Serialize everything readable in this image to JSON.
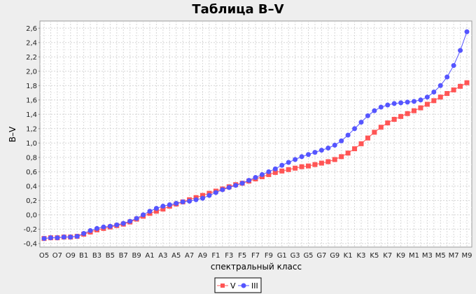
{
  "chart_data": {
    "type": "line",
    "title": "Таблица B–V",
    "xlabel": "спектральный класс",
    "ylabel": "B–V",
    "ylim": [
      -0.45,
      2.7
    ],
    "yticks": [
      -0.4,
      -0.2,
      0.0,
      0.2,
      0.4,
      0.6,
      0.8,
      1.0,
      1.2,
      1.4,
      1.6,
      1.8,
      2.0,
      2.2,
      2.4,
      2.6
    ],
    "ytick_labels": [
      "-0,4",
      "-0,2",
      "0,0",
      "0,2",
      "0,4",
      "0,6",
      "0,8",
      "1,0",
      "1,2",
      "1,4",
      "1,6",
      "1,8",
      "2,0",
      "2,2",
      "2,4",
      "2,6"
    ],
    "categories": [
      "O5",
      "O6",
      "O7",
      "O8",
      "O9",
      "B0",
      "B1",
      "B2",
      "B3",
      "B4",
      "B5",
      "B6",
      "B7",
      "B8",
      "B9",
      "A0",
      "A1",
      "A2",
      "A3",
      "A4",
      "A5",
      "A6",
      "A7",
      "A8",
      "A9",
      "F0",
      "F1",
      "F2",
      "F3",
      "F4",
      "F5",
      "F6",
      "F7",
      "F8",
      "F9",
      "G0",
      "G1",
      "G2",
      "G3",
      "G4",
      "G5",
      "G6",
      "G7",
      "G8",
      "G9",
      "K0",
      "K1",
      "K2",
      "K3",
      "K4",
      "K5",
      "K6",
      "K7",
      "K8",
      "K9",
      "M0",
      "M1",
      "M2",
      "M3",
      "M4",
      "M5",
      "M6",
      "M7",
      "M8",
      "M9"
    ],
    "xtick_labels": [
      "O5",
      "O7",
      "O9",
      "B1",
      "B3",
      "B5",
      "B7",
      "B9",
      "A1",
      "A3",
      "A5",
      "A7",
      "A9",
      "F1",
      "F3",
      "F5",
      "F7",
      "F9",
      "G1",
      "G3",
      "G5",
      "G7",
      "G9",
      "K1",
      "K3",
      "K5",
      "K7",
      "K9",
      "M1",
      "M3",
      "M5",
      "M7",
      "M9"
    ],
    "grid": true,
    "legend_position": "bottom-center",
    "series": [
      {
        "name": "V",
        "color": "#ff5555",
        "marker": "square",
        "values": [
          -0.33,
          -0.32,
          -0.32,
          -0.31,
          -0.31,
          -0.3,
          -0.27,
          -0.24,
          -0.21,
          -0.19,
          -0.17,
          -0.15,
          -0.13,
          -0.1,
          -0.06,
          -0.02,
          0.02,
          0.05,
          0.08,
          0.12,
          0.15,
          0.18,
          0.21,
          0.24,
          0.27,
          0.3,
          0.33,
          0.36,
          0.39,
          0.42,
          0.44,
          0.47,
          0.5,
          0.53,
          0.56,
          0.59,
          0.61,
          0.63,
          0.65,
          0.67,
          0.68,
          0.7,
          0.72,
          0.74,
          0.77,
          0.81,
          0.86,
          0.92,
          0.99,
          1.07,
          1.15,
          1.22,
          1.28,
          1.33,
          1.37,
          1.41,
          1.45,
          1.49,
          1.54,
          1.59,
          1.64,
          1.69,
          1.74,
          1.79,
          1.84
        ]
      },
      {
        "name": "III",
        "color": "#5555ff",
        "marker": "circle",
        "values": [
          -0.33,
          -0.32,
          -0.32,
          -0.31,
          -0.31,
          -0.3,
          -0.26,
          -0.22,
          -0.19,
          -0.17,
          -0.16,
          -0.14,
          -0.12,
          -0.09,
          -0.05,
          0.0,
          0.05,
          0.09,
          0.12,
          0.14,
          0.16,
          0.18,
          0.19,
          0.21,
          0.23,
          0.27,
          0.31,
          0.35,
          0.38,
          0.41,
          0.44,
          0.48,
          0.52,
          0.56,
          0.6,
          0.64,
          0.69,
          0.73,
          0.77,
          0.81,
          0.84,
          0.87,
          0.9,
          0.93,
          0.97,
          1.03,
          1.11,
          1.2,
          1.29,
          1.38,
          1.45,
          1.5,
          1.53,
          1.55,
          1.56,
          1.57,
          1.58,
          1.6,
          1.64,
          1.71,
          1.8,
          1.92,
          2.08,
          2.29,
          2.55
        ]
      }
    ]
  }
}
